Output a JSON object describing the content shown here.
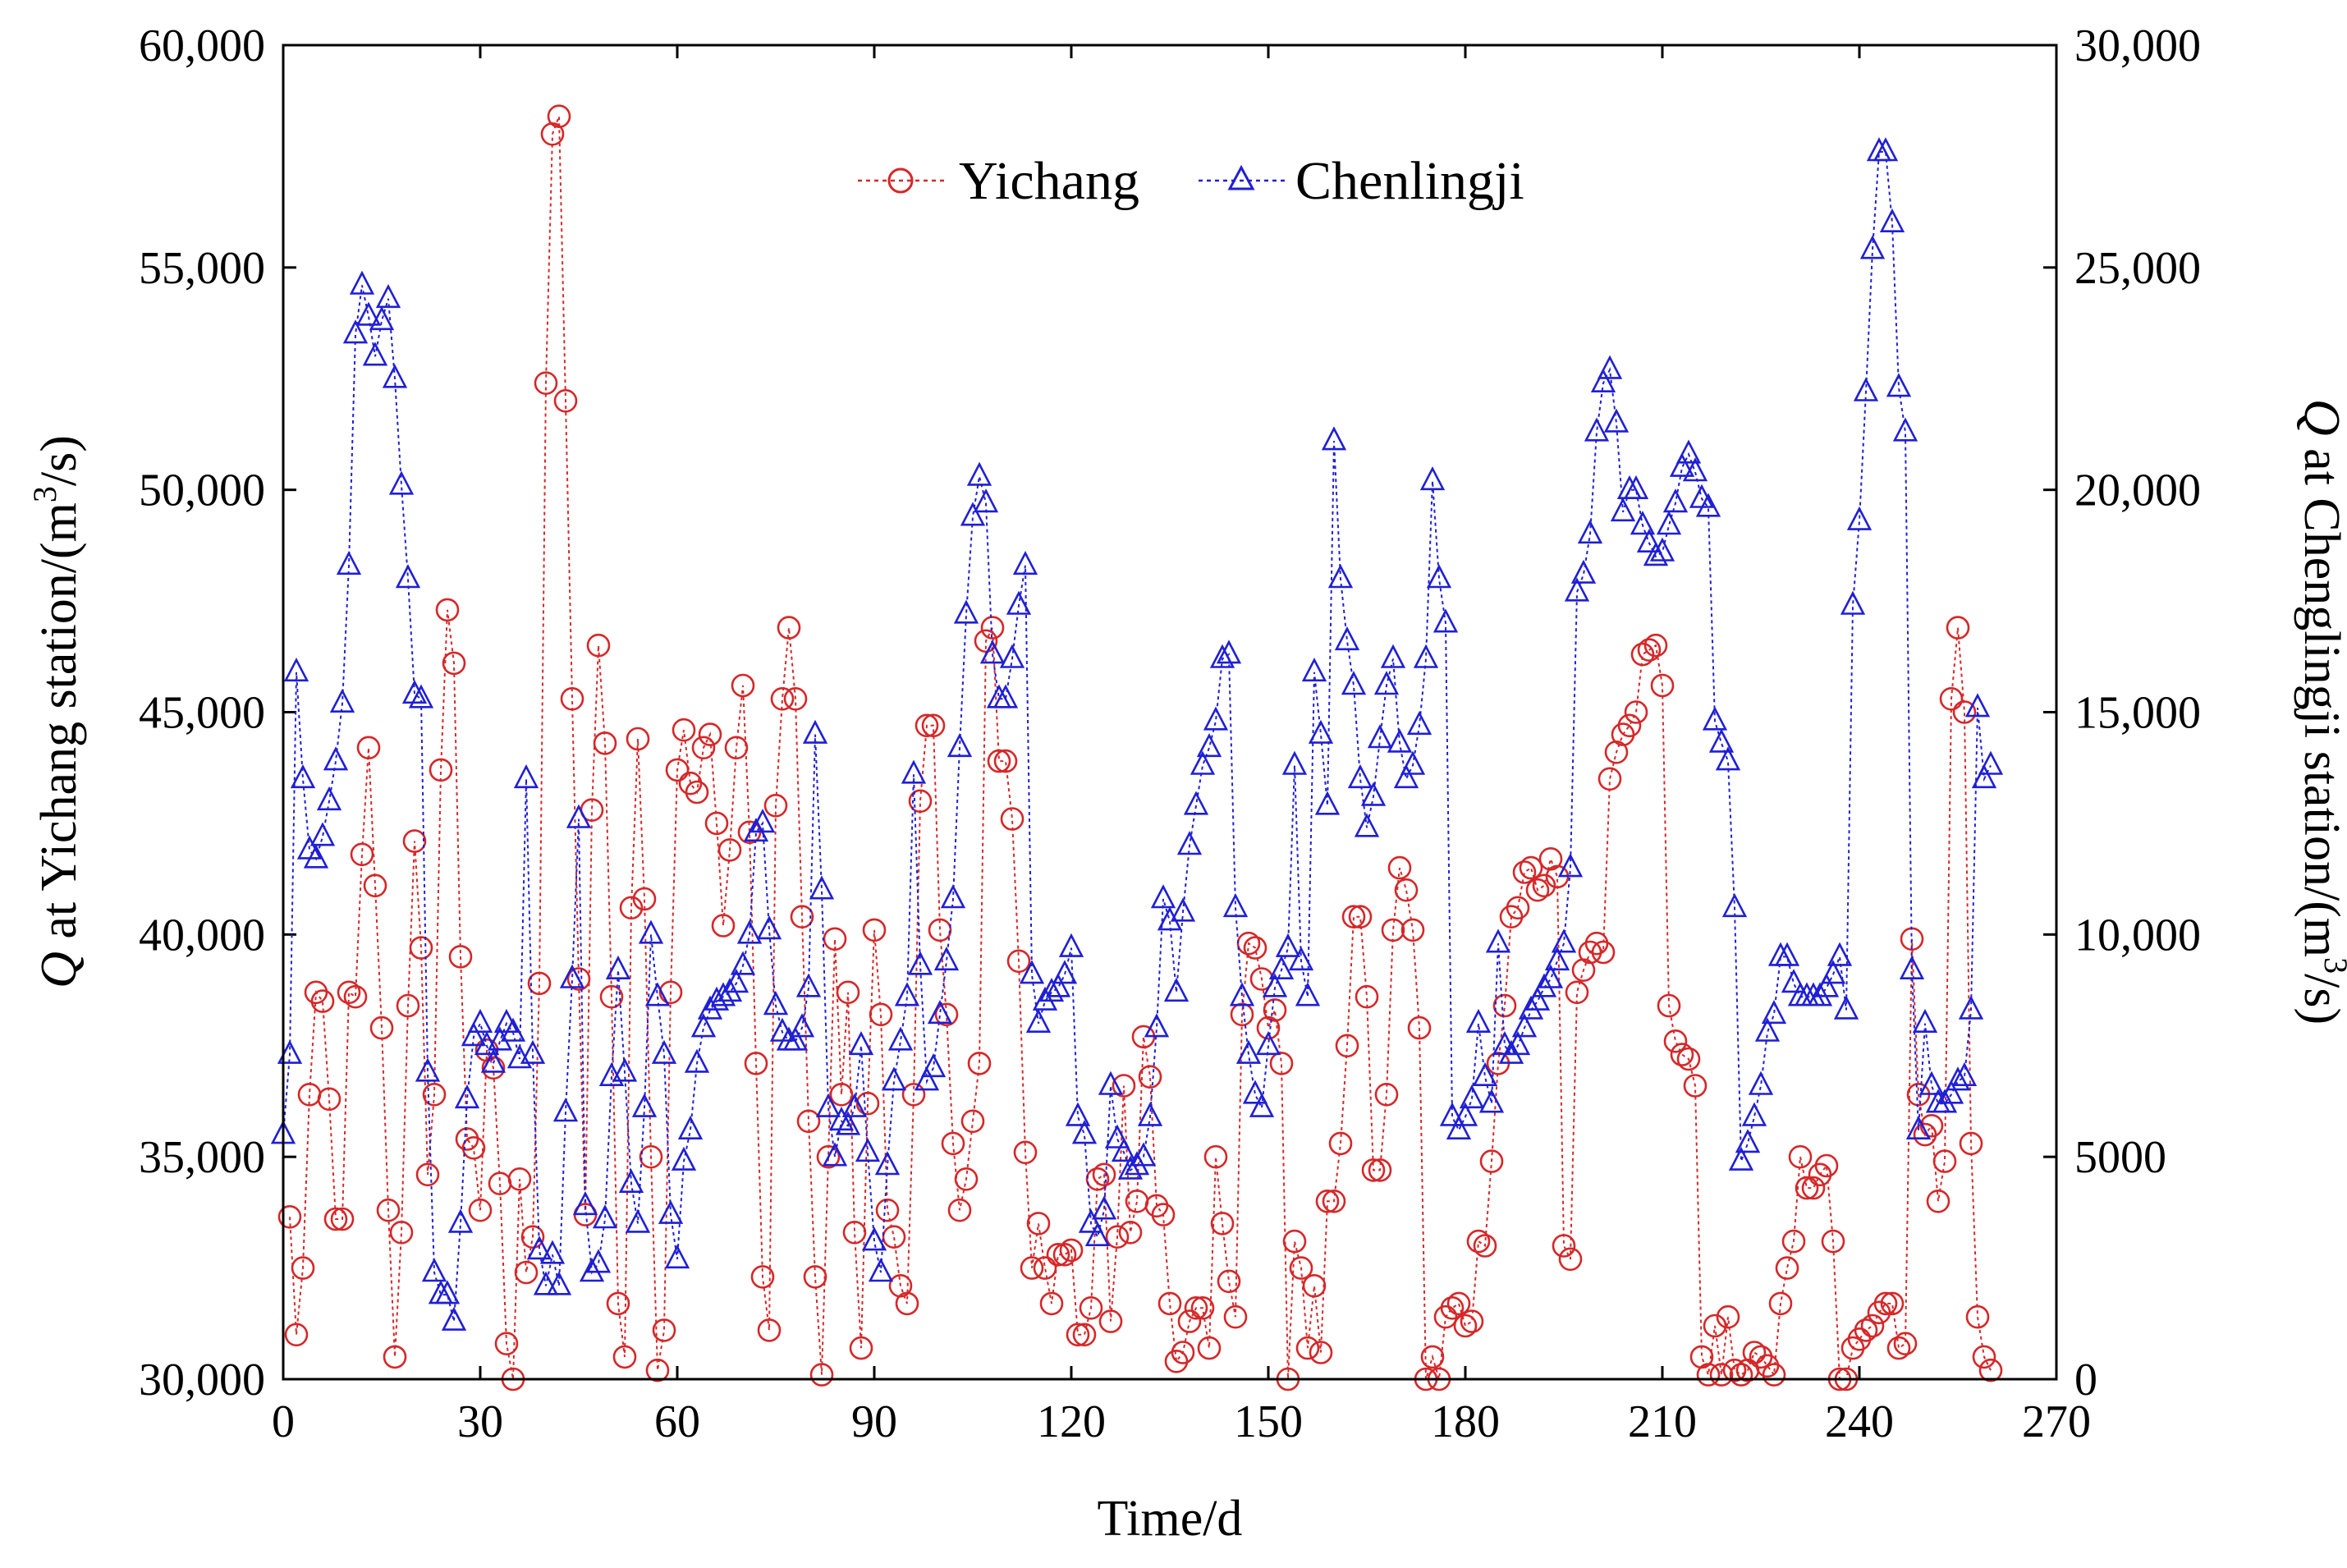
{
  "chart_data": {
    "type": "line",
    "x_label": "Time/d",
    "left_axis_label_prefix": "Q",
    "left_axis_label_suffix": " at Yichang station/(m",
    "right_axis_label_prefix": "Q",
    "right_axis_label_suffix": " at Chenglingji station/(m",
    "axis_unit_exponent": "3",
    "axis_unit_tail": "/s)",
    "x_range": [
      0,
      270
    ],
    "x_ticks": [
      0,
      30,
      60,
      90,
      120,
      150,
      180,
      210,
      240,
      270
    ],
    "x_tick_labels": [
      "0",
      "30",
      "60",
      "90",
      "120",
      "150",
      "180",
      "210",
      "240",
      "270"
    ],
    "y_left_range": [
      30000,
      60000
    ],
    "y_left_ticks": [
      30000,
      35000,
      40000,
      45000,
      50000,
      55000,
      60000
    ],
    "y_left_tick_labels": [
      "30,000",
      "35,000",
      "40,000",
      "45,000",
      "50,000",
      "55,000",
      "60,000"
    ],
    "y_right_range": [
      0,
      30000
    ],
    "y_right_ticks": [
      0,
      5000,
      10000,
      15000,
      20000,
      25000,
      30000
    ],
    "y_right_tick_labels": [
      "0",
      "5000",
      "10,000",
      "15,000",
      "20,000",
      "25,000",
      "30,000"
    ],
    "legend_position": "top-center",
    "series": [
      {
        "name": "Yichang",
        "axis": "left",
        "color": "#d62728",
        "marker": "circle",
        "x_start": 1,
        "values": [
          33650,
          31000,
          32500,
          36400,
          38700,
          38500,
          36300,
          33600,
          33600,
          38700,
          38600,
          41800,
          44200,
          41100,
          37900,
          33800,
          30500,
          33300,
          38400,
          42100,
          39700,
          34600,
          36400,
          43700,
          47300,
          46100,
          39500,
          35400,
          35200,
          33800,
          37400,
          37000,
          34400,
          30800,
          30000,
          34500,
          32400,
          33200,
          38900,
          52400,
          58000,
          58400,
          52000,
          45300,
          39000,
          33700,
          42800,
          46500,
          44300,
          38600,
          31700,
          30500,
          40600,
          44400,
          40800,
          35000,
          30200,
          31100,
          38700,
          43700,
          44600,
          43400,
          43200,
          44200,
          44500,
          42500,
          40200,
          41900,
          44200,
          45600,
          42300,
          37100,
          32300,
          31100,
          42900,
          45300,
          46900,
          45300,
          40400,
          35800,
          32300,
          30100,
          35000,
          39900,
          36400,
          38700,
          33300,
          30700,
          36200,
          40100,
          38200,
          33800,
          33200,
          32100,
          31700,
          36400,
          43000,
          44700,
          44700,
          40100,
          38200,
          35300,
          33800,
          34500,
          35800,
          37100,
          46600,
          46900,
          43900,
          43900,
          42600,
          39400,
          35100,
          32500,
          33500,
          32500,
          31700,
          32800,
          32800,
          32900,
          31000,
          31000,
          31600,
          34500,
          34600,
          31300,
          33200,
          36600,
          33300,
          34000,
          37700,
          36800,
          33900,
          33700,
          31700,
          30400,
          30600,
          31300,
          31600,
          31600,
          30700,
          35000,
          33500,
          32200,
          31400,
          38200,
          39800,
          39700,
          39000,
          37900,
          38300,
          37100,
          30000,
          33100,
          32500,
          30700,
          32100,
          30600,
          34000,
          34000,
          35300,
          37500,
          40400,
          40400,
          38600,
          34700,
          34700,
          36400,
          40100,
          41500,
          41000,
          40100,
          37900,
          30000,
          30500,
          30000,
          31400,
          31600,
          31700,
          31200,
          31300,
          33100,
          33000,
          34900,
          37100,
          38400,
          40400,
          40600,
          41400,
          41500,
          41000,
          41100,
          41700,
          41300,
          33000,
          32700,
          38700,
          39200,
          39600,
          39800,
          39600,
          43500,
          44100,
          44500,
          44700,
          45000,
          46300,
          46400,
          46500,
          45600,
          38400,
          37600,
          37300,
          37200,
          36600,
          30500,
          30100,
          31200,
          30100,
          31400,
          30200,
          30100,
          30200,
          30600,
          30500,
          30300,
          30100,
          31700,
          32500,
          33100,
          35000,
          34300,
          34300,
          34600,
          34800,
          33100,
          30000,
          30000,
          30700,
          30900,
          31100,
          31200,
          31500,
          31700,
          31700,
          30700,
          30800,
          39900,
          36400,
          35500,
          35700,
          34000,
          34900,
          45300,
          46900,
          45000,
          35300,
          31400,
          30500,
          30200
        ]
      },
      {
        "name": "Chenlingji",
        "axis": "right",
        "color": "#1f1fd6",
        "marker": "triangle",
        "x_start": 0,
        "values": [
          5500,
          7300,
          15900,
          13500,
          11900,
          11700,
          12200,
          13000,
          13900,
          15200,
          18300,
          23500,
          24600,
          23900,
          23000,
          23800,
          24300,
          22500,
          20100,
          18000,
          15400,
          15300,
          6900,
          2400,
          1900,
          1900,
          1300,
          3500,
          6300,
          7700,
          8000,
          7500,
          7100,
          7600,
          8000,
          7800,
          7200,
          13500,
          7300,
          2900,
          2100,
          2800,
          2100,
          6000,
          9000,
          12600,
          3900,
          2400,
          2600,
          3600,
          6800,
          9200,
          6900,
          4400,
          3500,
          6100,
          10000,
          8600,
          7300,
          3700,
          2700,
          4900,
          5600,
          7100,
          7900,
          8300,
          8500,
          8600,
          8700,
          8900,
          9300,
          10000,
          12300,
          12500,
          10100,
          8400,
          7800,
          7600,
          7600,
          7900,
          8800,
          14500,
          11000,
          6100,
          5000,
          5800,
          5700,
          6100,
          7500,
          5100,
          3100,
          2400,
          4800,
          6700,
          7600,
          8600,
          13600,
          9300,
          6700,
          7000,
          8200,
          9400,
          10800,
          14200,
          17200,
          19400,
          20300,
          19700,
          16300,
          15300,
          15300,
          16200,
          17400,
          18300,
          9100,
          8000,
          8500,
          8700,
          8800,
          9100,
          9700,
          5900,
          5500,
          3500,
          3200,
          3800,
          6600,
          5400,
          5100,
          4700,
          4800,
          5000,
          5900,
          7900,
          10800,
          10300,
          8700,
          10500,
          12000,
          12900,
          13800,
          14200,
          14800,
          16200,
          16300,
          10600,
          8600,
          7300,
          6400,
          6100,
          7500,
          8800,
          9200,
          9700,
          13800,
          9400,
          8600,
          15900,
          14500,
          12900,
          21100,
          18000,
          16600,
          15600,
          13500,
          12400,
          13100,
          14400,
          15600,
          16200,
          14300,
          13500,
          13800,
          14700,
          16200,
          20200,
          18000,
          17000,
          5900,
          5600,
          5900,
          6300,
          8000,
          6800,
          6200,
          9800,
          7500,
          7300,
          7500,
          7900,
          8300,
          8500,
          8800,
          9000,
          9400,
          9800,
          11500,
          17700,
          18100,
          19000,
          21300,
          22400,
          22700,
          21500,
          19500,
          20000,
          20000,
          19200,
          18800,
          18500,
          18600,
          19200,
          19700,
          20500,
          20800,
          20400,
          19800,
          19600,
          14800,
          14300,
          13900,
          10600,
          4900,
          5300,
          5900,
          6600,
          7800,
          8200,
          9500,
          9500,
          8900,
          8600,
          8600,
          8600,
          8600,
          8800,
          9100,
          9500,
          8300,
          17400,
          19300,
          22200,
          25400,
          27600,
          27600,
          26000,
          22300,
          21300,
          9200,
          5600,
          8000,
          6600,
          6200,
          6200,
          6400,
          6700,
          6800,
          8300,
          15100,
          13500,
          13800
        ]
      }
    ]
  }
}
